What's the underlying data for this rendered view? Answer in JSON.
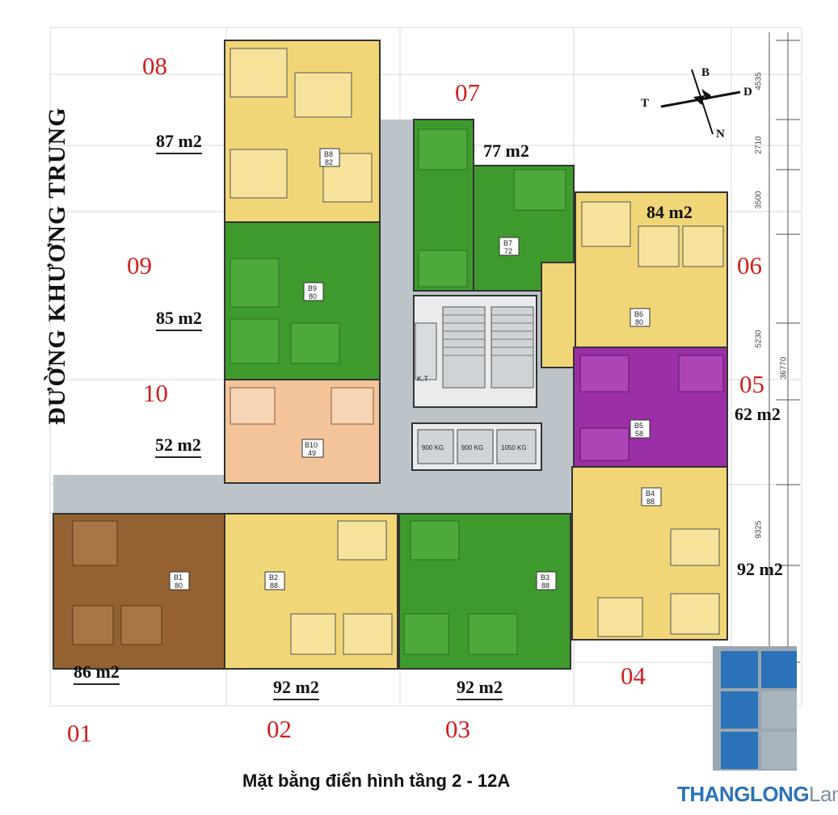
{
  "street_name": "ĐƯỜNG KHƯƠNG TRUNG",
  "caption": "Mặt bằng điển hình tầng 2 - 12A",
  "compass": {
    "north": "B",
    "south": "N",
    "east": "D",
    "west": "T"
  },
  "apartments": [
    {
      "number": "01",
      "area": "86 m2",
      "code": "B1",
      "code_area": "80"
    },
    {
      "number": "02",
      "area": "92 m2",
      "code": "B2",
      "code_area": "88"
    },
    {
      "number": "03",
      "area": "92 m2",
      "code": "B3",
      "code_area": "88"
    },
    {
      "number": "04",
      "area": "92 m2",
      "code": "B4",
      "code_area": "88"
    },
    {
      "number": "05",
      "area": "62 m2",
      "code": "B5",
      "code_area": "58"
    },
    {
      "number": "06",
      "area": "84 m2",
      "code": "B6",
      "code_area": "80"
    },
    {
      "number": "07",
      "area": "77 m2",
      "code": "B7",
      "code_area": "72"
    },
    {
      "number": "08",
      "area": "87 m2",
      "code": "B8",
      "code_area": "82"
    },
    {
      "number": "09",
      "area": "85 m2",
      "code": "B9",
      "code_area": "80"
    },
    {
      "number": "10",
      "area": "52 m2",
      "code": "B10",
      "code_area": "49"
    }
  ],
  "elevators": [
    "900 KG",
    "900 KG",
    "1050 KG"
  ],
  "kt_label": "K.T",
  "dimensions": [
    "4535",
    "2710",
    "3500",
    "5230",
    "36770",
    "9325"
  ],
  "logo": {
    "part1": "THANGLONG",
    "part2": "Land"
  },
  "colors": {
    "yellow": "#f1d677",
    "green": "#3f9a2e",
    "purple": "#9b2fa6",
    "brown": "#946231",
    "peach": "#f3c39a",
    "corridor": "#bcc4c9",
    "logo_blue": "#2b72b8",
    "logo_gray": "#a7b3bd",
    "unit_number": "#d21e1e"
  }
}
